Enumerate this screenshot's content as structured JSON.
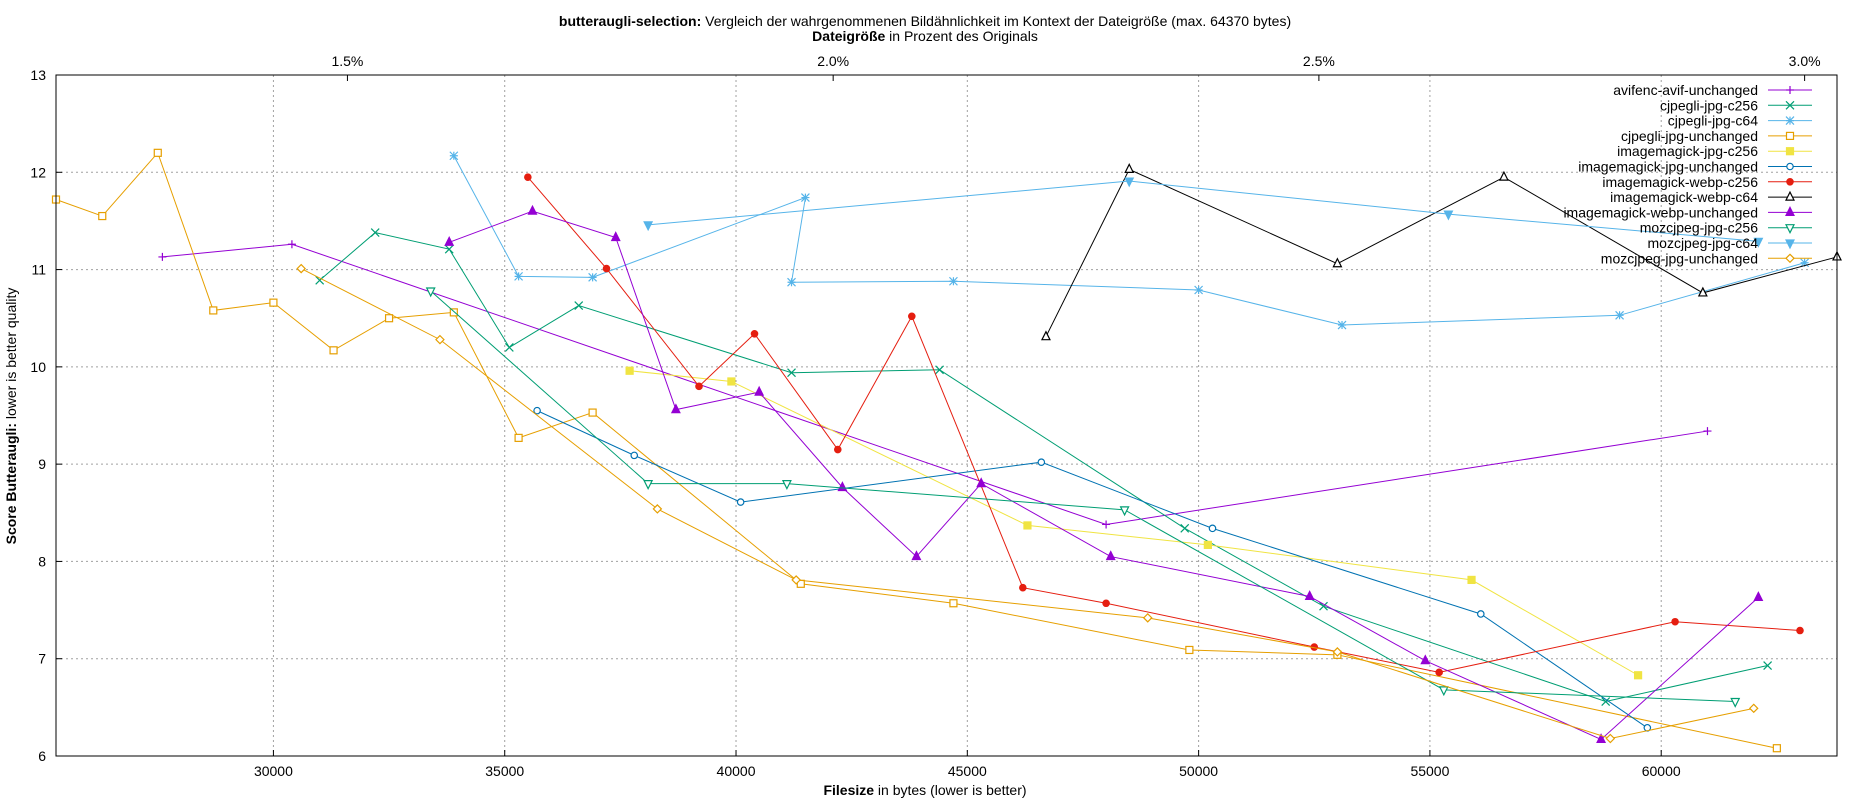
{
  "chart_data": {
    "type": "line",
    "title_bold": "butteraugli-selection:",
    "title_rest": " Vergleich der wahrgenommenen Bildähnlichkeit im Kontext der Dateigröße (max. 64370 bytes)",
    "x2label_bold": "Dateigröße",
    "x2label_rest": " in Prozent des Originals",
    "xlabel_bold": "Filesize",
    "xlabel_rest": " in bytes (lower is better)",
    "ylabel_bold": "Score Butteraugli:",
    "ylabel_rest": " lower is better quality",
    "xlim": [
      25300,
      63800
    ],
    "ylim": [
      6,
      13
    ],
    "x_ticks": [
      30000,
      35000,
      40000,
      45000,
      50000,
      55000,
      60000
    ],
    "y_ticks": [
      6,
      7,
      8,
      9,
      10,
      11,
      12,
      13
    ],
    "x2_ticks": [
      {
        "label": "1.5%",
        "x": 31600
      },
      {
        "label": "2.0%",
        "x": 42100
      },
      {
        "label": "2.5%",
        "x": 52600
      },
      {
        "label": "3.0%",
        "x": 63100
      }
    ],
    "grid": true,
    "legend_position": "top-right",
    "series": [
      {
        "name": "avifenc-avif-unchanged",
        "color": "#9400d3",
        "marker": "plus",
        "points": [
          [
            27600,
            11.13
          ],
          [
            30400,
            11.26
          ],
          [
            48000,
            8.38
          ],
          [
            61000,
            9.34
          ]
        ]
      },
      {
        "name": "cjpegli-jpg-c256",
        "color": "#009e73",
        "marker": "cross",
        "points": [
          [
            31000,
            10.89
          ],
          [
            32200,
            11.38
          ],
          [
            33800,
            11.21
          ],
          [
            35100,
            10.2
          ],
          [
            36600,
            10.63
          ],
          [
            41200,
            9.94
          ],
          [
            44400,
            9.97
          ],
          [
            49700,
            8.34
          ],
          [
            52700,
            7.54
          ],
          [
            58800,
            6.56
          ],
          [
            62300,
            6.93
          ]
        ]
      },
      {
        "name": "cjpegli-jpg-c64",
        "color": "#56b4e9",
        "marker": "star",
        "points": [
          [
            33900,
            12.17
          ],
          [
            35300,
            10.93
          ],
          [
            36900,
            10.92
          ],
          [
            41500,
            11.74
          ],
          [
            41200,
            10.87
          ],
          [
            44700,
            10.88
          ],
          [
            50000,
            10.79
          ],
          [
            53100,
            10.43
          ],
          [
            59100,
            10.53
          ],
          [
            63100,
            11.07
          ]
        ]
      },
      {
        "name": "cjpegli-jpg-unchanged",
        "color": "#e69f00",
        "marker": "square",
        "points": [
          [
            25300,
            11.72
          ],
          [
            26300,
            11.55
          ],
          [
            27500,
            12.2
          ],
          [
            28700,
            10.58
          ],
          [
            30000,
            10.66
          ],
          [
            31300,
            10.17
          ],
          [
            32500,
            10.5
          ],
          [
            33900,
            10.56
          ],
          [
            35300,
            9.27
          ],
          [
            36900,
            9.53
          ],
          [
            41400,
            7.77
          ],
          [
            44700,
            7.57
          ],
          [
            49800,
            7.09
          ],
          [
            53000,
            7.04
          ],
          [
            62500,
            6.08
          ]
        ]
      },
      {
        "name": "imagemagick-jpg-c256",
        "color": "#f0e442",
        "marker": "filled-square",
        "points": [
          [
            37700,
            9.96
          ],
          [
            39900,
            9.85
          ],
          [
            46300,
            8.37
          ],
          [
            50200,
            8.17
          ],
          [
            55900,
            7.81
          ],
          [
            59500,
            6.83
          ]
        ]
      },
      {
        "name": "imagemagick-jpg-unchanged",
        "color": "#0072b2",
        "marker": "circle",
        "points": [
          [
            35700,
            9.55
          ],
          [
            37800,
            9.09
          ],
          [
            40100,
            8.61
          ],
          [
            46600,
            9.02
          ],
          [
            50300,
            8.34
          ],
          [
            56100,
            7.46
          ],
          [
            59700,
            6.29
          ]
        ]
      },
      {
        "name": "imagemagick-webp-c256",
        "color": "#e51e10",
        "marker": "filled-circle",
        "points": [
          [
            35500,
            11.95
          ],
          [
            37200,
            11.01
          ],
          [
            39200,
            9.8
          ],
          [
            40400,
            10.34
          ],
          [
            42200,
            9.15
          ],
          [
            43800,
            10.52
          ],
          [
            46200,
            7.73
          ],
          [
            48000,
            7.57
          ],
          [
            52500,
            7.12
          ],
          [
            55200,
            6.86
          ],
          [
            60300,
            7.38
          ],
          [
            63000,
            7.29
          ]
        ]
      },
      {
        "name": "imagemagick-webp-c64",
        "color": "#000000",
        "marker": "triangle",
        "points": [
          [
            46700,
            10.31
          ],
          [
            48500,
            12.03
          ],
          [
            53000,
            11.06
          ],
          [
            56600,
            11.95
          ],
          [
            60900,
            10.76
          ],
          [
            63800,
            11.13
          ]
        ]
      },
      {
        "name": "imagemagick-webp-unchanged",
        "color": "#9400d3",
        "marker": "filled-triangle",
        "points": [
          [
            33800,
            11.28
          ],
          [
            35600,
            11.6
          ],
          [
            37400,
            11.33
          ],
          [
            38700,
            9.56
          ],
          [
            40500,
            9.74
          ],
          [
            42300,
            8.76
          ],
          [
            43900,
            8.05
          ],
          [
            45300,
            8.8
          ],
          [
            48100,
            8.05
          ],
          [
            52400,
            7.64
          ],
          [
            54900,
            6.98
          ],
          [
            58700,
            6.17
          ],
          [
            62100,
            7.63
          ]
        ]
      },
      {
        "name": "mozcjpeg-jpg-c256",
        "color": "#009e73",
        "marker": "triangle-down",
        "points": [
          [
            33400,
            10.78
          ],
          [
            38100,
            8.8
          ],
          [
            41100,
            8.8
          ],
          [
            48400,
            8.53
          ],
          [
            55300,
            6.68
          ],
          [
            61600,
            6.56
          ]
        ]
      },
      {
        "name": "mozcjpeg-jpg-c64",
        "color": "#56b4e9",
        "marker": "filled-triangle-down",
        "points": [
          [
            38100,
            11.46
          ],
          [
            48500,
            11.91
          ],
          [
            55400,
            11.57
          ],
          [
            62100,
            11.29
          ]
        ]
      },
      {
        "name": "mozcjpeg-jpg-unchanged",
        "color": "#e69f00",
        "marker": "diamond",
        "points": [
          [
            30600,
            11.01
          ],
          [
            33600,
            10.28
          ],
          [
            38300,
            8.54
          ],
          [
            41300,
            7.81
          ],
          [
            48900,
            7.42
          ],
          [
            53000,
            7.07
          ],
          [
            58900,
            6.18
          ],
          [
            62000,
            6.49
          ]
        ]
      }
    ]
  }
}
